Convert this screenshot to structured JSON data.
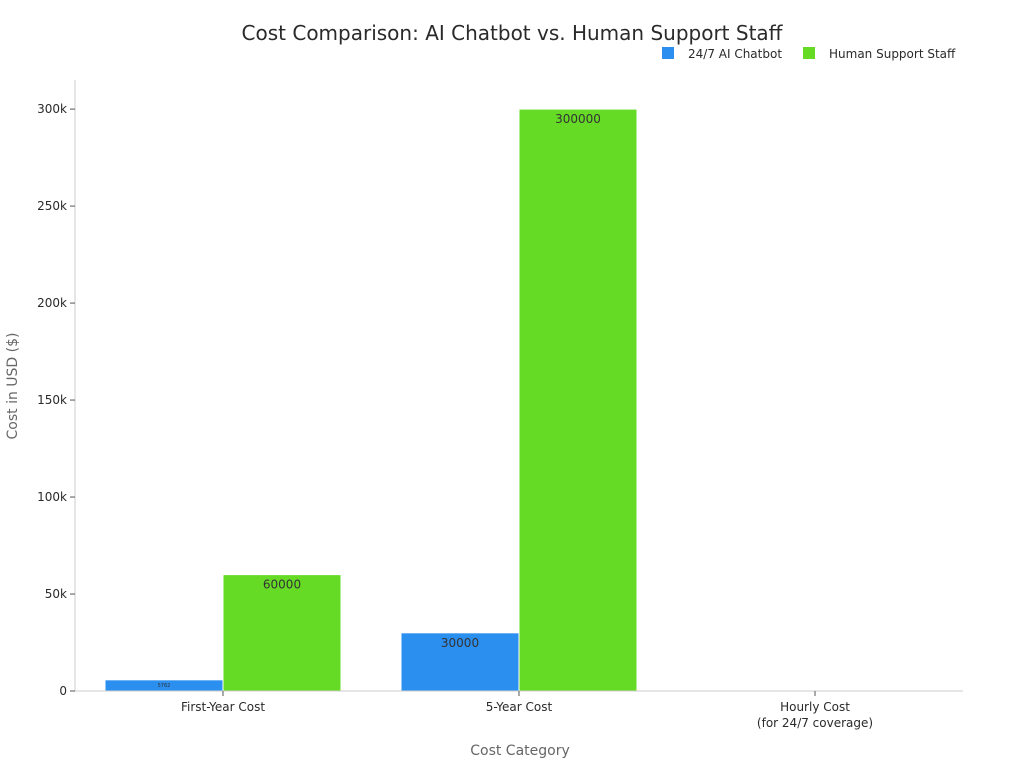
{
  "chart_data": {
    "type": "bar",
    "title": "Cost Comparison: AI Chatbot vs. Human Support Staff",
    "xlabel": "Cost Category",
    "ylabel": "Cost in USD ($)",
    "categories": [
      "First-Year Cost",
      "5-Year Cost",
      "Hourly Cost\n(for 24/7 coverage)"
    ],
    "series": [
      {
        "name": "24/7 AI Chatbot",
        "color": "#2b8ff0",
        "values": [
          5762,
          30000,
          0.66
        ],
        "labels": [
          "5762",
          "30000",
          ""
        ]
      },
      {
        "name": "Human Support Staff",
        "color": "#66db26",
        "values": [
          60000,
          300000,
          6.85
        ],
        "labels": [
          "60000",
          "300000",
          ""
        ]
      }
    ],
    "ylim": [
      0,
      315000
    ],
    "yticks": [
      0,
      50000,
      100000,
      150000,
      200000,
      250000,
      300000
    ],
    "ytick_labels": [
      "0",
      "50k",
      "100k",
      "150k",
      "200k",
      "250k",
      "300k"
    ],
    "legend_position": "top-right",
    "grid": false
  }
}
